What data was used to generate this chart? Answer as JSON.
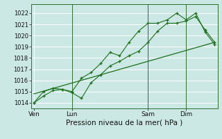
{
  "xlabel": "Pression niveau de la mer( hPa )",
  "bg_color": "#cce8e4",
  "grid_color": "#ffffff",
  "line_color": "#1a6e1a",
  "ylim": [
    1013.5,
    1022.8
  ],
  "yticks": [
    1014,
    1015,
    1016,
    1017,
    1018,
    1019,
    1020,
    1021,
    1022
  ],
  "xtick_labels": [
    "Ven",
    "Lun",
    "Sam",
    "Dim"
  ],
  "xtick_positions": [
    0,
    4,
    12,
    16
  ],
  "xlim": [
    -0.3,
    19.3
  ],
  "line1_x": [
    0,
    1,
    2,
    3,
    4,
    5,
    6,
    7,
    8,
    9,
    10,
    11,
    12,
    13,
    14,
    15,
    16,
    17,
    18,
    19
  ],
  "line1": [
    1014.0,
    1014.6,
    1015.1,
    1015.2,
    1014.9,
    1014.4,
    1015.8,
    1016.5,
    1017.3,
    1017.7,
    1018.2,
    1018.6,
    1019.4,
    1020.4,
    1021.1,
    1021.1,
    1021.3,
    1021.7,
    1020.5,
    1019.4
  ],
  "line2_x": [
    0,
    1,
    2,
    3,
    4,
    5,
    6,
    7,
    8,
    9,
    10,
    11,
    12,
    13,
    14,
    15,
    16,
    17,
    18,
    19
  ],
  "line2": [
    1014.0,
    1015.0,
    1015.3,
    1015.2,
    1015.0,
    1016.2,
    1016.7,
    1017.5,
    1018.5,
    1018.2,
    1019.4,
    1020.4,
    1021.1,
    1021.1,
    1021.4,
    1022.0,
    1021.4,
    1022.0,
    1020.3,
    1019.2
  ],
  "trend_x": [
    0,
    19
  ],
  "trend_y": [
    1014.8,
    1019.4
  ],
  "vlines": [
    4,
    12,
    16
  ],
  "spine_color": "#2d6e2d",
  "xlabel_fontsize": 7.5,
  "ytick_fontsize": 6,
  "xtick_fontsize": 6.5
}
